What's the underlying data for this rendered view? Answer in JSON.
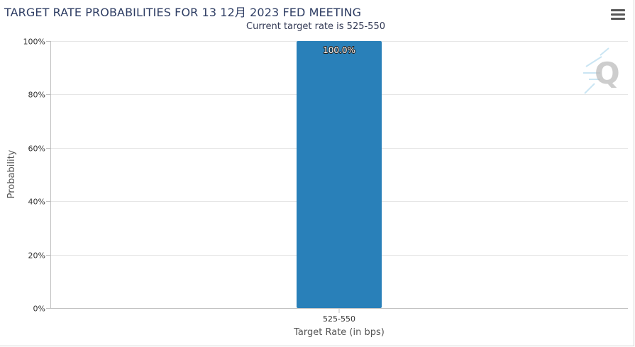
{
  "title": "TARGET RATE PROBABILITIES FOR 13 12月 2023 FED MEETING",
  "subtitle": "Current target rate is 525-550",
  "menu_icon": "hamburger-menu-icon",
  "watermark_icon": "q-logo-icon",
  "colors": {
    "bar": "#2980b9",
    "gridline": "#e6e6e6",
    "title": "#2e3d63"
  },
  "chart_data": {
    "type": "bar",
    "title": "TARGET RATE PROBABILITIES FOR 13 12月 2023 FED MEETING",
    "subtitle": "Current target rate is 525-550",
    "categories": [
      "525-550"
    ],
    "values": [
      100.0
    ],
    "data_labels": [
      "100.0%"
    ],
    "xlabel": "Target Rate (in bps)",
    "ylabel": "Probability",
    "ylim": [
      0,
      100
    ],
    "y_ticks": [
      0,
      20,
      40,
      60,
      80,
      100
    ],
    "y_tick_labels": [
      "0%",
      "20%",
      "40%",
      "60%",
      "80%",
      "100%"
    ],
    "grid": true,
    "legend": "none"
  }
}
